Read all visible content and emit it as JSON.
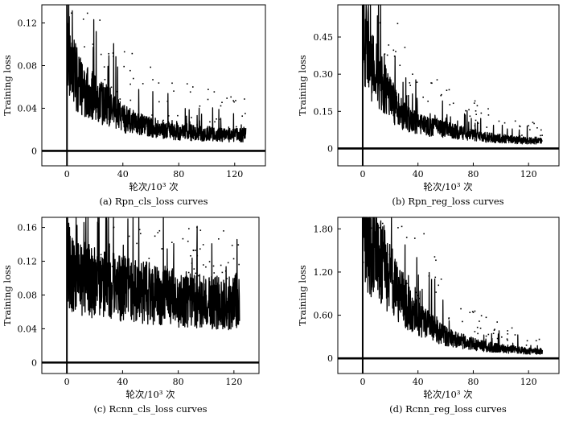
{
  "figure": {
    "panels_layout": "2x2 grid"
  },
  "chart_data": [
    {
      "id": "a",
      "type": "line",
      "caption": "(a) Rpn_cls_loss curves",
      "xlabel": "轮次/10³ 次",
      "ylabel": "Training loss",
      "xlim": [
        -18,
        142
      ],
      "ylim": [
        -0.014,
        0.137
      ],
      "xticks": [
        0,
        40,
        80,
        120
      ],
      "xtick_labels": [
        "0",
        "40",
        "80",
        "120"
      ],
      "yticks": [
        0,
        0.04,
        0.08,
        0.12
      ],
      "ytick_labels": [
        "0",
        "0.04",
        "0.08",
        "0.12"
      ],
      "series": [
        {
          "name": "Rpn_cls_loss",
          "x": [
            0,
            2,
            4,
            6,
            8,
            10,
            15,
            20,
            25,
            30,
            35,
            40,
            45,
            50,
            55,
            60,
            65,
            70,
            75,
            80,
            85,
            90,
            95,
            100,
            105,
            110,
            115,
            120,
            125,
            128
          ],
          "y": [
            0.13,
            0.085,
            0.075,
            0.07,
            0.065,
            0.06,
            0.055,
            0.05,
            0.045,
            0.04,
            0.035,
            0.03,
            0.028,
            0.025,
            0.024,
            0.022,
            0.021,
            0.02,
            0.019,
            0.018,
            0.018,
            0.017,
            0.017,
            0.016,
            0.016,
            0.015,
            0.015,
            0.015,
            0.015,
            0.016
          ]
        }
      ]
    },
    {
      "id": "b",
      "type": "line",
      "caption": "(b) Rpn_reg_loss curves",
      "xlabel": "轮次/10³ 次",
      "ylabel": "Training loss",
      "xlim": [
        -18,
        142
      ],
      "ylim": [
        -0.07,
        0.58
      ],
      "xticks": [
        0,
        40,
        80,
        120
      ],
      "xtick_labels": [
        "0",
        "40",
        "80",
        "120"
      ],
      "yticks": [
        0,
        0.15,
        0.3,
        0.45
      ],
      "ytick_labels": [
        "0",
        "0.15",
        "0.30",
        "0.45"
      ],
      "series": [
        {
          "name": "Rpn_reg_loss",
          "x": [
            0,
            2,
            4,
            6,
            8,
            10,
            15,
            20,
            25,
            30,
            35,
            40,
            45,
            50,
            55,
            60,
            65,
            70,
            75,
            80,
            85,
            90,
            95,
            100,
            105,
            110,
            115,
            120,
            125,
            130
          ],
          "y": [
            0.55,
            0.42,
            0.38,
            0.35,
            0.33,
            0.3,
            0.25,
            0.2,
            0.16,
            0.13,
            0.11,
            0.1,
            0.09,
            0.085,
            0.08,
            0.075,
            0.07,
            0.065,
            0.06,
            0.055,
            0.05,
            0.045,
            0.042,
            0.04,
            0.038,
            0.035,
            0.033,
            0.032,
            0.03,
            0.03
          ]
        }
      ]
    },
    {
      "id": "c",
      "type": "line",
      "caption": "(c) Rcnn_cls_loss curves",
      "xlabel": "轮次/10³ 次",
      "ylabel": "Training loss",
      "xlim": [
        -18,
        138
      ],
      "ylim": [
        -0.013,
        0.172
      ],
      "xticks": [
        0,
        40,
        80,
        120
      ],
      "xtick_labels": [
        "0",
        "40",
        "80",
        "120"
      ],
      "yticks": [
        0,
        0.04,
        0.08,
        0.12,
        0.16
      ],
      "ytick_labels": [
        "0",
        "0.04",
        "0.08",
        "0.12",
        "0.16"
      ],
      "series": [
        {
          "name": "Rcnn_cls_loss",
          "x": [
            0,
            2,
            4,
            6,
            8,
            10,
            15,
            20,
            25,
            30,
            35,
            40,
            45,
            50,
            55,
            60,
            65,
            70,
            75,
            80,
            85,
            90,
            95,
            100,
            105,
            110,
            115,
            120,
            124
          ],
          "y": [
            0.15,
            0.11,
            0.105,
            0.1,
            0.1,
            0.1,
            0.098,
            0.095,
            0.094,
            0.092,
            0.09,
            0.088,
            0.086,
            0.084,
            0.083,
            0.082,
            0.08,
            0.079,
            0.078,
            0.076,
            0.075,
            0.074,
            0.073,
            0.072,
            0.072,
            0.071,
            0.07,
            0.07,
            0.08
          ]
        }
      ]
    },
    {
      "id": "d",
      "type": "line",
      "caption": "(d) Rcnn_reg_loss curves",
      "xlabel": "轮次/10³ 次",
      "ylabel": "Training loss",
      "xlim": [
        -18,
        142
      ],
      "ylim": [
        -0.21,
        1.96
      ],
      "xticks": [
        0,
        40,
        80,
        120
      ],
      "xtick_labels": [
        "0",
        "40",
        "80",
        "120"
      ],
      "yticks": [
        0,
        0.6,
        1.2,
        1.8
      ],
      "ytick_labels": [
        "0",
        "0.60",
        "1.20",
        "1.80"
      ],
      "series": [
        {
          "name": "Rcnn_reg_loss",
          "x": [
            0,
            2,
            4,
            6,
            8,
            10,
            15,
            20,
            25,
            30,
            35,
            40,
            45,
            50,
            55,
            60,
            65,
            70,
            75,
            80,
            85,
            90,
            95,
            100,
            105,
            110,
            115,
            120,
            125,
            130
          ],
          "y": [
            1.9,
            1.75,
            1.65,
            1.55,
            1.5,
            1.45,
            1.3,
            1.1,
            0.95,
            0.8,
            0.65,
            0.55,
            0.48,
            0.42,
            0.36,
            0.32,
            0.28,
            0.25,
            0.22,
            0.2,
            0.18,
            0.16,
            0.15,
            0.14,
            0.13,
            0.12,
            0.11,
            0.1,
            0.1,
            0.1
          ]
        }
      ]
    }
  ]
}
